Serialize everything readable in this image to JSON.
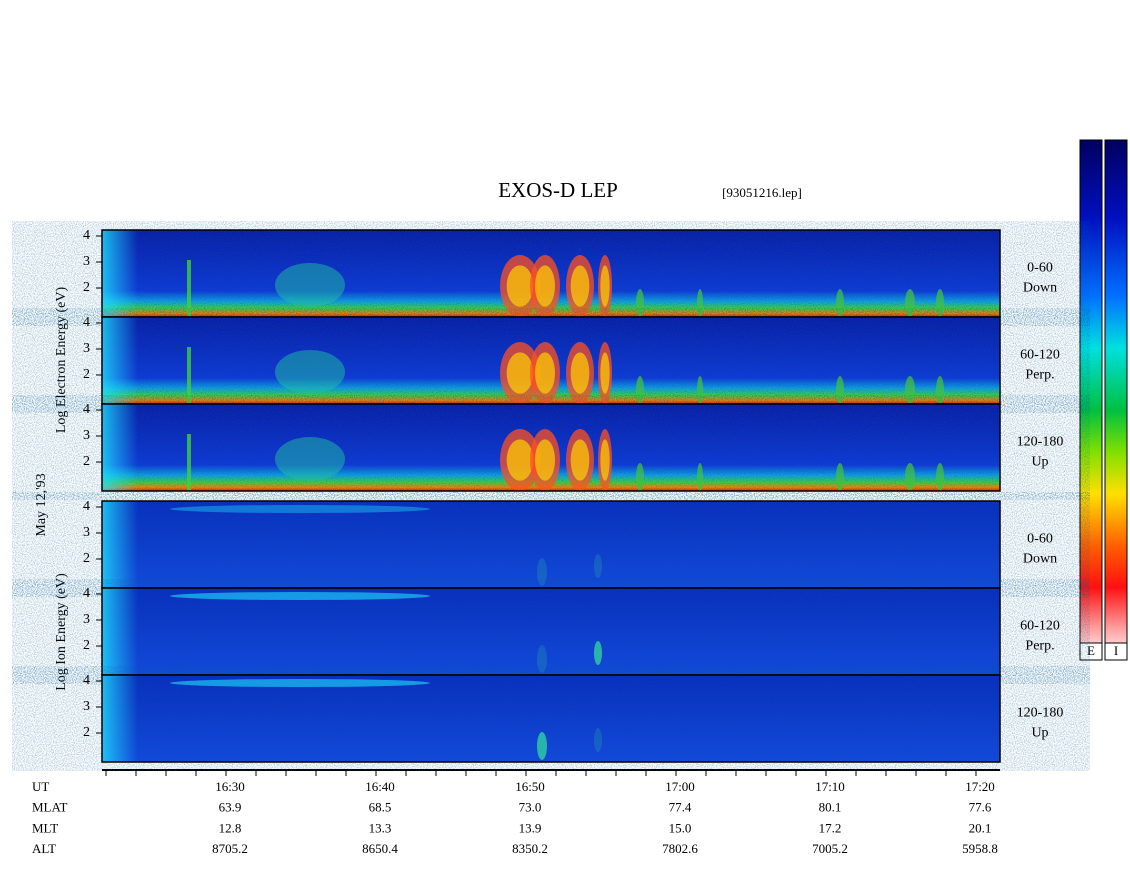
{
  "header": {
    "title": "EXOS-D LEP",
    "file": "[93051216.lep]"
  },
  "date": "May 12,'93",
  "energy_ticks": [
    "4",
    "3",
    "2"
  ],
  "electron": {
    "axis_label": "Log  Electron  Energy (eV)",
    "panels": [
      {
        "range": "0-60",
        "direction": "Down"
      },
      {
        "range": "60-120",
        "direction": "Perp."
      },
      {
        "range": "120-180",
        "direction": "Up"
      }
    ]
  },
  "ion": {
    "axis_label": "Log  Ion  Energy (eV)",
    "panels": [
      {
        "range": "0-60",
        "direction": "Down"
      },
      {
        "range": "60-120",
        "direction": "Perp."
      },
      {
        "range": "120-180",
        "direction": "Up"
      }
    ]
  },
  "time_axis": {
    "rows": [
      {
        "name": "UT",
        "values": [
          "16:30",
          "16:40",
          "16:50",
          "17:00",
          "17:10",
          "17:20"
        ]
      },
      {
        "name": "MLAT",
        "values": [
          "63.9",
          "68.5",
          "73.0",
          "77.4",
          "80.1",
          "77.6"
        ]
      },
      {
        "name": "MLT",
        "values": [
          "12.8",
          "13.3",
          "13.9",
          "15.0",
          "17.2",
          "20.1"
        ]
      },
      {
        "name": "ALT",
        "values": [
          "8705.2",
          "8650.4",
          "8350.2",
          "7802.6",
          "7005.2",
          "5958.8"
        ]
      }
    ]
  },
  "colorbars": [
    "E",
    "I"
  ]
}
